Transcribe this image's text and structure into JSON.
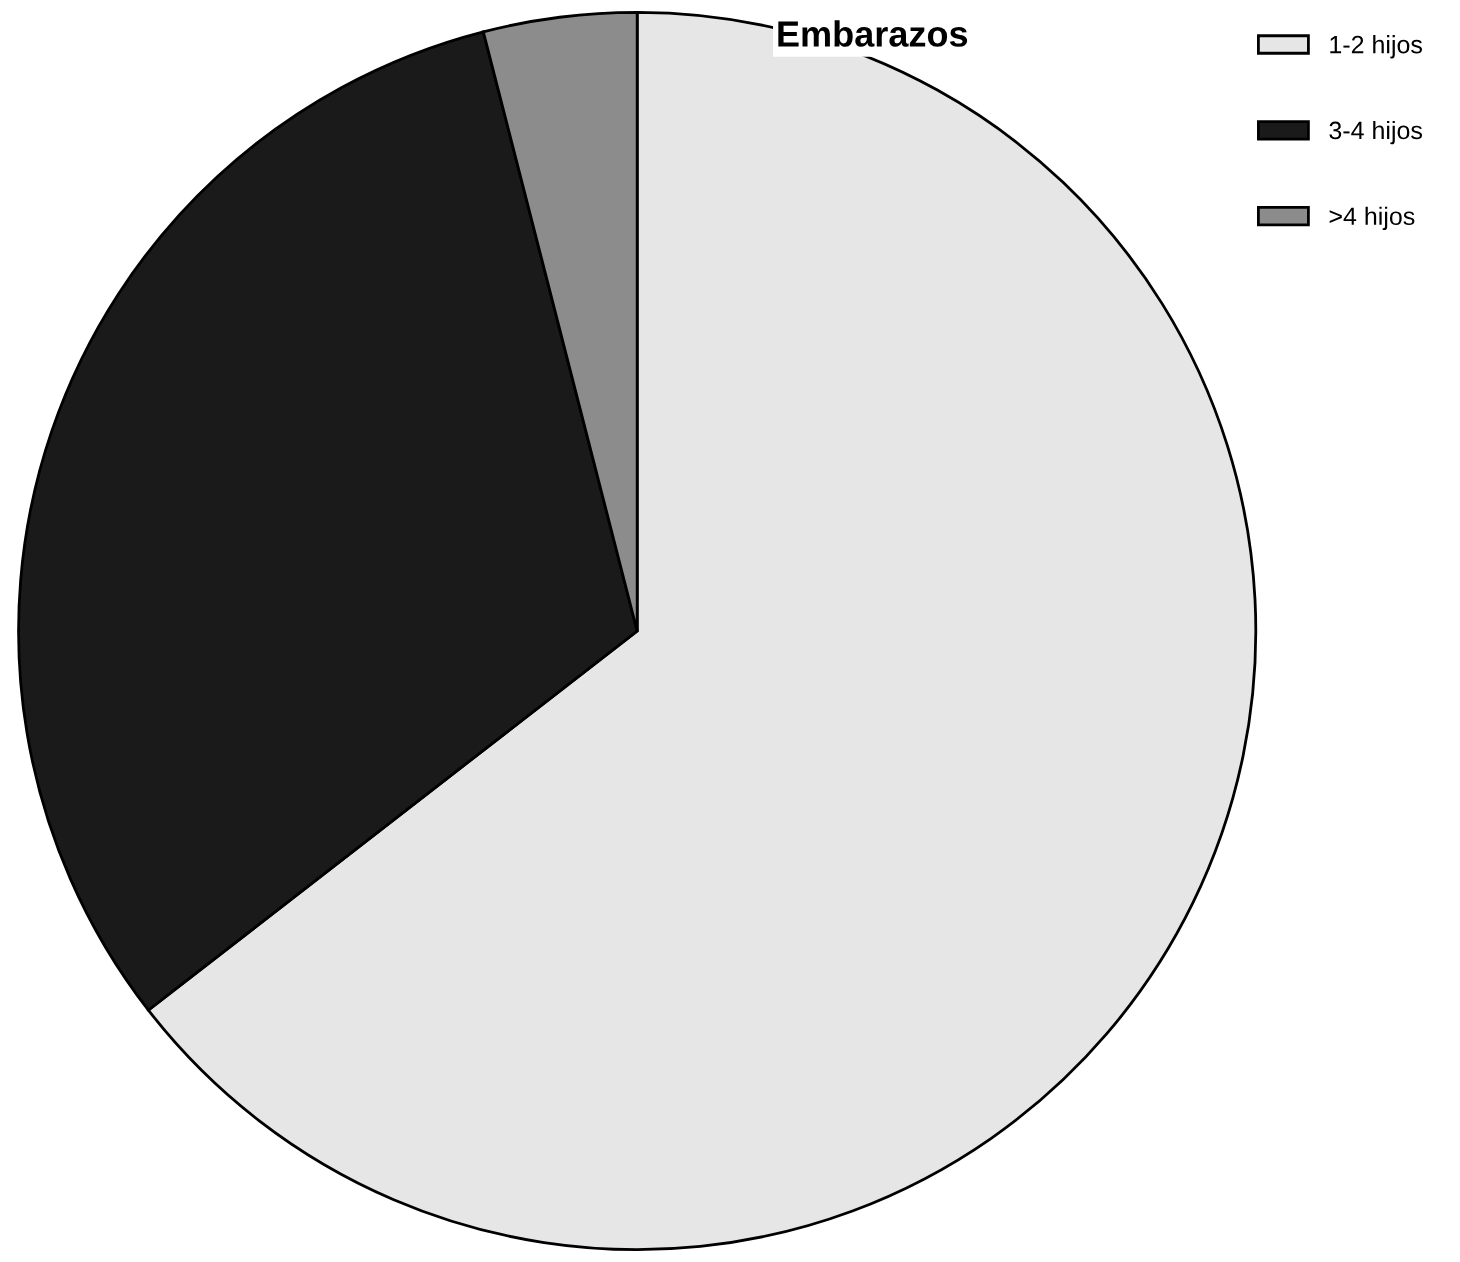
{
  "chart_data": {
    "type": "pie",
    "title": "Embarazos",
    "categories": [
      "1-2 hijos",
      "3-4 hijos",
      ">4 hijos"
    ],
    "values": [
      64.5,
      31.5,
      4.0
    ],
    "colors": [
      "#e6e6e6",
      "#1a1a1a",
      "#8c8c8c"
    ],
    "legend": "top right"
  }
}
